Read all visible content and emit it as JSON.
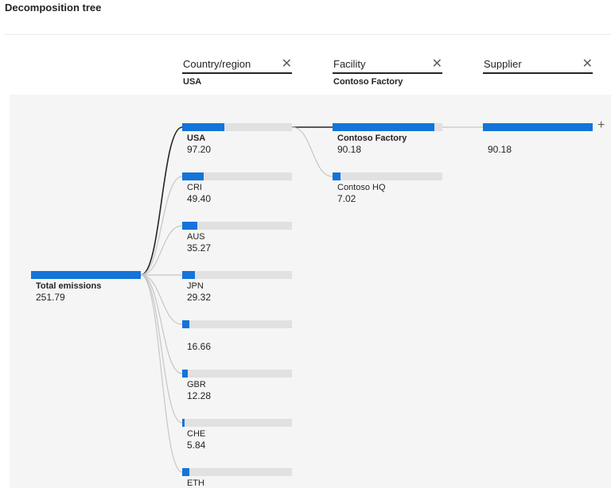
{
  "title": "Decomposition tree",
  "accent_color": "#1474d9",
  "track_color": "#e1e1e1",
  "columns": [
    {
      "name": "Country/region",
      "value": "USA"
    },
    {
      "name": "Facility",
      "value": "Contoso Factory"
    },
    {
      "name": "Supplier",
      "value": ""
    }
  ],
  "close_glyph": "✕",
  "expand_glyph": "+",
  "root": {
    "label": "Total emissions",
    "value": "251.79"
  },
  "countries": [
    {
      "label": "USA",
      "value": "97.20"
    },
    {
      "label": "CRI",
      "value": "49.40"
    },
    {
      "label": "AUS",
      "value": "35.27"
    },
    {
      "label": "JPN",
      "value": "29.32"
    },
    {
      "label": "",
      "value": "16.66"
    },
    {
      "label": "GBR",
      "value": "12.28"
    },
    {
      "label": "CHE",
      "value": "5.84"
    },
    {
      "label": "ETH",
      "value": ""
    }
  ],
  "facilities": [
    {
      "label": "Contoso Factory",
      "value": "90.18"
    },
    {
      "label": "Contoso HQ",
      "value": "7.02"
    }
  ],
  "suppliers": [
    {
      "label": "",
      "value": "90.18"
    }
  ],
  "chart_data": {
    "type": "decomposition-tree",
    "root": {
      "label": "Total emissions",
      "value": 251.79
    },
    "levels": [
      {
        "field": "Country/region",
        "selected": "USA",
        "bars": [
          {
            "label": "USA",
            "value": 97.2
          },
          {
            "label": "CRI",
            "value": 49.4
          },
          {
            "label": "AUS",
            "value": 35.27
          },
          {
            "label": "JPN",
            "value": 29.32
          },
          {
            "label": "",
            "value": 16.66
          },
          {
            "label": "GBR",
            "value": 12.28
          },
          {
            "label": "CHE",
            "value": 5.84
          },
          {
            "label": "ETH",
            "value": null
          }
        ]
      },
      {
        "field": "Facility",
        "selected": "Contoso Factory",
        "bars": [
          {
            "label": "Contoso Factory",
            "value": 90.18
          },
          {
            "label": "Contoso HQ",
            "value": 7.02
          }
        ]
      },
      {
        "field": "Supplier",
        "selected": "",
        "bars": [
          {
            "label": "",
            "value": 90.18
          }
        ]
      }
    ]
  }
}
